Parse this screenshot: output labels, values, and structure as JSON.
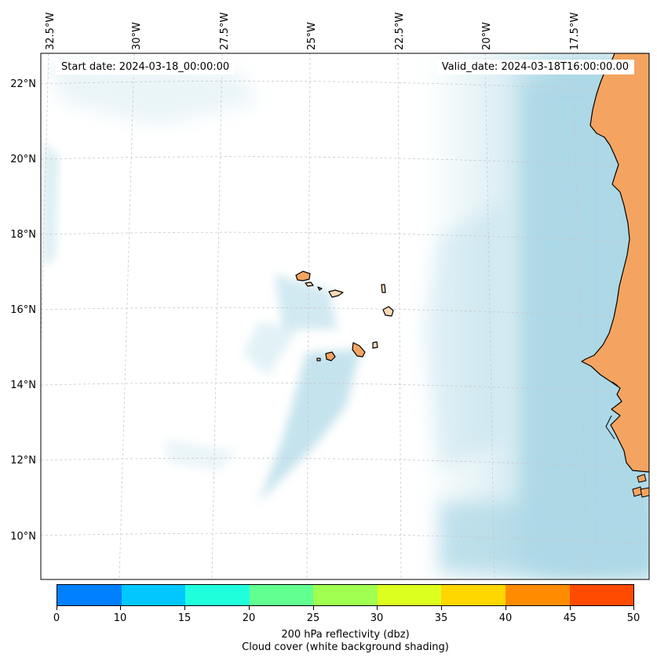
{
  "map": {
    "start_label": "Start date: 2024-03-18_00:00:00",
    "valid_label": "Valid_date: 2024-03-18T16:00:00.00",
    "lon_labels": [
      "32.5°W",
      "30°W",
      "27.5°W",
      "25°W",
      "22.5°W",
      "20°W",
      "17.5°W"
    ],
    "lat_labels": [
      "22°N",
      "20°N",
      "18°N",
      "16°N",
      "14°N",
      "12°N",
      "10°N"
    ],
    "colors": {
      "land": "#f4a460",
      "land_light": "#fcd9b6",
      "cloud": "#add8e6",
      "ocean": "#ffffff",
      "gridline": "#c8c8c8"
    }
  },
  "colorbar": {
    "ticks": [
      "0",
      "10",
      "15",
      "20",
      "25",
      "30",
      "35",
      "40",
      "45",
      "50"
    ],
    "colors": [
      "#0080ff",
      "#00c8ff",
      "#20ffdc",
      "#60ff90",
      "#a0ff50",
      "#dcff20",
      "#ffd700",
      "#ff8c00",
      "#ff4a00"
    ],
    "label_line1": "200 hPa reflectivity (dbz)",
    "label_line2": "Cloud cover (white background shading)"
  }
}
